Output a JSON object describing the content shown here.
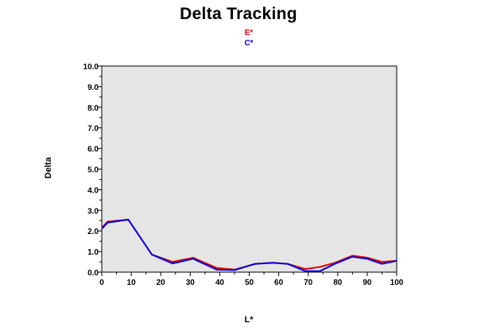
{
  "chart_data": {
    "type": "line",
    "title": "Delta Tracking",
    "xlabel": "L*",
    "ylabel": "Delta",
    "xlim": [
      0,
      100
    ],
    "ylim": [
      0,
      10
    ],
    "x_ticks": [
      "0",
      "10",
      "20",
      "30",
      "40",
      "50",
      "60",
      "70",
      "80",
      "90",
      "100"
    ],
    "y_ticks": [
      "0.0",
      "1.0",
      "2.0",
      "3.0",
      "4.0",
      "5.0",
      "6.0",
      "7.0",
      "8.0",
      "9.0",
      "10.0"
    ],
    "grid": false,
    "legend_position": "top-center",
    "plot_background": "#e5e5e5",
    "series": [
      {
        "name": "E*",
        "color": "#e00000",
        "points": [
          [
            0,
            2.15
          ],
          [
            2,
            2.45
          ],
          [
            9,
            2.55
          ],
          [
            17,
            0.85
          ],
          [
            24,
            0.5
          ],
          [
            31,
            0.7
          ],
          [
            39,
            0.2
          ],
          [
            45,
            0.12
          ],
          [
            52,
            0.4
          ],
          [
            58,
            0.45
          ],
          [
            63,
            0.4
          ],
          [
            69,
            0.15
          ],
          [
            74,
            0.25
          ],
          [
            79,
            0.45
          ],
          [
            85,
            0.8
          ],
          [
            90,
            0.7
          ],
          [
            95,
            0.5
          ],
          [
            100,
            0.55
          ]
        ]
      },
      {
        "name": "C*",
        "color": "#0000e0",
        "points": [
          [
            0,
            2.1
          ],
          [
            2,
            2.4
          ],
          [
            9,
            2.55
          ],
          [
            17,
            0.85
          ],
          [
            24,
            0.42
          ],
          [
            31,
            0.65
          ],
          [
            39,
            0.12
          ],
          [
            45,
            0.1
          ],
          [
            52,
            0.4
          ],
          [
            58,
            0.45
          ],
          [
            63,
            0.4
          ],
          [
            69,
            0.05
          ],
          [
            74,
            0.05
          ],
          [
            79,
            0.4
          ],
          [
            85,
            0.75
          ],
          [
            90,
            0.65
          ],
          [
            95,
            0.4
          ],
          [
            100,
            0.55
          ]
        ]
      }
    ]
  }
}
